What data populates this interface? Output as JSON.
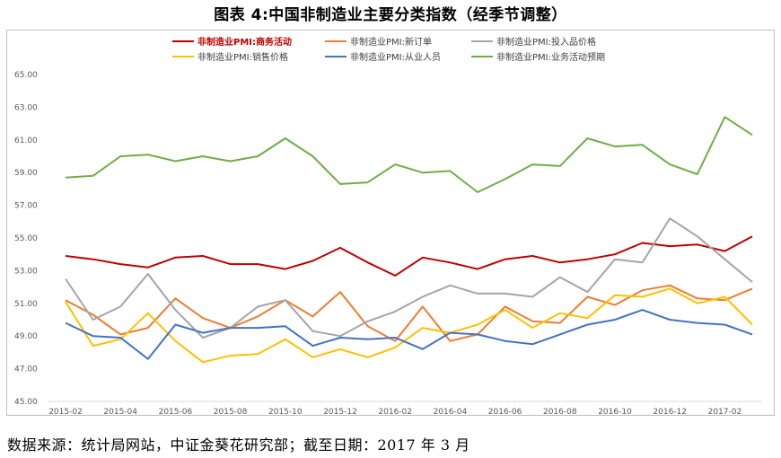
{
  "header": {
    "title": "图表 4:中国非制造业主要分类指数（经季节调整）"
  },
  "footer": {
    "source": "数据来源：统计局网站，中证金葵花研究部；截至日期：2017 年 3 月"
  },
  "chart_data": {
    "type": "line",
    "title": "图表 4:中国非制造业主要分类指数（经季节调整）",
    "xlabel": "",
    "ylabel": "",
    "ylim": [
      45,
      65
    ],
    "yticks": [
      "45.00",
      "47.00",
      "49.00",
      "51.00",
      "53.00",
      "55.00",
      "57.00",
      "59.00",
      "61.00",
      "63.00",
      "65.00"
    ],
    "grid": false,
    "legend_position": "top",
    "x": [
      "2015-02",
      "2015-03",
      "2015-04",
      "2015-05",
      "2015-06",
      "2015-07",
      "2015-08",
      "2015-09",
      "2015-10",
      "2015-11",
      "2015-12",
      "2016-01",
      "2016-02",
      "2016-03",
      "2016-04",
      "2016-05",
      "2016-06",
      "2016-07",
      "2016-08",
      "2016-09",
      "2016-10",
      "2016-11",
      "2016-12",
      "2017-01",
      "2017-02",
      "2017-03"
    ],
    "xticks": [
      "2015-02",
      "2015-04",
      "2015-06",
      "2015-08",
      "2015-10",
      "2015-12",
      "2016-02",
      "2016-04",
      "2016-06",
      "2016-08",
      "2016-10",
      "2016-12",
      "2017-02"
    ],
    "series": [
      {
        "name": "非制造业PMI:商务活动",
        "color": "#c00000",
        "highlight": true,
        "values": [
          53.9,
          53.7,
          53.4,
          53.2,
          53.8,
          53.9,
          53.4,
          53.4,
          53.1,
          53.6,
          54.4,
          53.5,
          52.7,
          53.8,
          53.5,
          53.1,
          53.7,
          53.9,
          53.5,
          53.7,
          54.0,
          54.7,
          54.5,
          54.6,
          54.2,
          55.1
        ]
      },
      {
        "name": "非制造业PMI:新订单",
        "color": "#ed7d31",
        "values": [
          51.2,
          50.3,
          49.1,
          49.5,
          51.3,
          50.1,
          49.5,
          50.2,
          51.2,
          50.2,
          51.7,
          49.6,
          48.7,
          50.8,
          48.7,
          49.1,
          50.8,
          49.9,
          49.8,
          51.4,
          50.9,
          51.8,
          52.1,
          51.3,
          51.2,
          51.9
        ]
      },
      {
        "name": "非制造业PMI:投入品价格",
        "color": "#a5a5a5",
        "values": [
          52.5,
          50.0,
          50.8,
          52.8,
          50.6,
          48.9,
          49.5,
          50.8,
          51.2,
          49.3,
          49.0,
          49.9,
          50.5,
          51.4,
          52.1,
          51.6,
          51.6,
          51.4,
          52.6,
          51.7,
          53.7,
          53.5,
          56.2,
          55.1,
          53.7,
          52.3
        ]
      },
      {
        "name": "非制造业PMI:销售价格",
        "color": "#ffc000",
        "values": [
          51.1,
          48.4,
          48.8,
          50.4,
          48.7,
          47.4,
          47.8,
          47.9,
          48.8,
          47.7,
          48.2,
          47.7,
          48.3,
          49.5,
          49.2,
          49.7,
          50.6,
          49.5,
          50.4,
          50.1,
          51.5,
          51.4,
          51.9,
          51.0,
          51.4,
          49.7
        ]
      },
      {
        "name": "非制造业PMI:从业人员",
        "color": "#4472c4",
        "values": [
          49.8,
          49.0,
          48.9,
          47.6,
          49.7,
          49.2,
          49.5,
          49.5,
          49.6,
          48.4,
          48.9,
          48.8,
          48.9,
          48.2,
          49.2,
          49.1,
          48.7,
          48.5,
          49.1,
          49.7,
          50.0,
          50.6,
          50.0,
          49.8,
          49.7,
          49.1
        ]
      },
      {
        "name": "非制造业PMI:业务活动预期",
        "color": "#70ad47",
        "values": [
          58.7,
          58.8,
          60.0,
          60.1,
          59.7,
          60.0,
          59.7,
          60.0,
          61.1,
          60.0,
          58.3,
          58.4,
          59.5,
          59.0,
          59.1,
          57.8,
          58.6,
          59.5,
          59.4,
          61.1,
          60.6,
          60.7,
          59.5,
          58.9,
          62.4,
          61.3
        ]
      }
    ]
  }
}
